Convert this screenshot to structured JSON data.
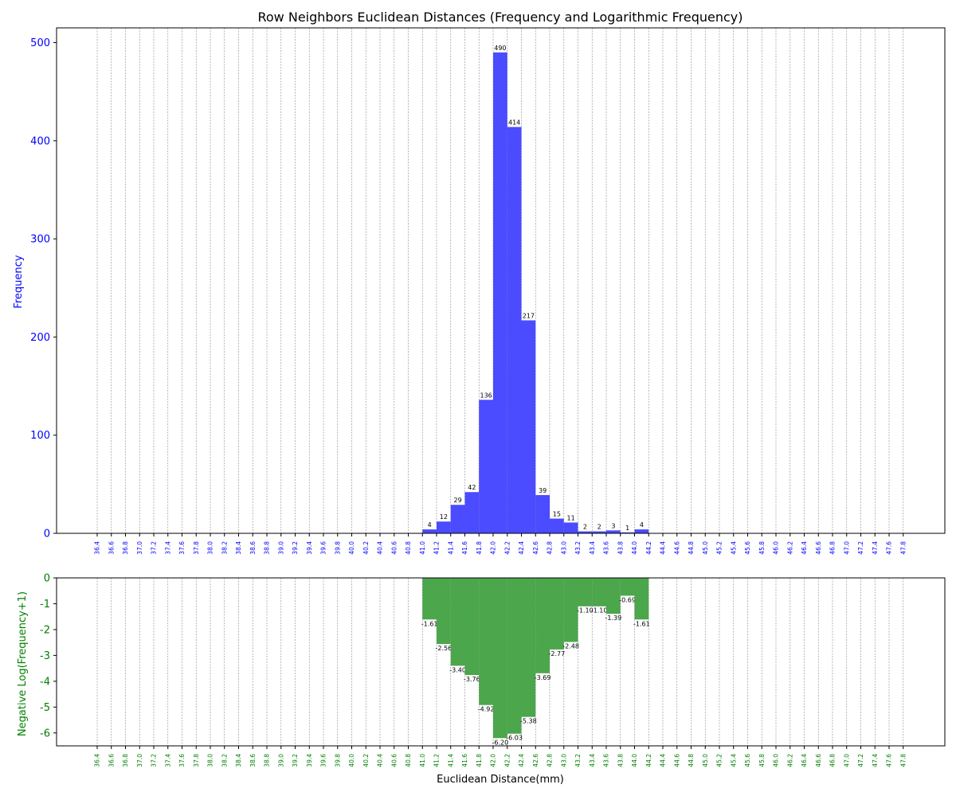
{
  "chart_data": [
    {
      "type": "bar",
      "title": "Row Neighbors Euclidean Distances (Frequency and Logarithmic Frequency)",
      "ylabel": "Frequency",
      "xlabel": "",
      "ylim": [
        0,
        515
      ],
      "yticks": [
        0,
        100,
        200,
        300,
        400,
        500
      ],
      "color": "#4b4bff",
      "axis_color": "#0000ff",
      "grid": "vertical dashed",
      "tick_labels": [
        "36.4",
        "36.6",
        "36.8",
        "37.0",
        "37.2",
        "37.4",
        "37.6",
        "37.8",
        "38.0",
        "38.2",
        "38.4",
        "38.6",
        "38.8",
        "39.0",
        "39.2",
        "39.4",
        "39.6",
        "39.8",
        "40.0",
        "40.2",
        "40.4",
        "40.6",
        "40.8",
        "41.0",
        "41.2",
        "41.4",
        "41.6",
        "41.8",
        "42.0",
        "42.2",
        "42.4",
        "42.6",
        "42.8",
        "43.0",
        "43.2",
        "43.4",
        "43.6",
        "43.8",
        "44.0",
        "44.2",
        "44.4",
        "44.6",
        "44.8",
        "45.0",
        "45.2",
        "45.4",
        "45.6",
        "45.8",
        "46.0",
        "46.2",
        "46.4",
        "46.6",
        "46.8",
        "47.0",
        "47.2",
        "47.4",
        "47.6",
        "47.8"
      ],
      "bar_starts": [
        41.0,
        41.2,
        41.4,
        41.6,
        41.8,
        42.0,
        42.2,
        42.4,
        42.6,
        42.8,
        43.0,
        43.2,
        43.4,
        43.6,
        43.8,
        44.0
      ],
      "values": [
        4,
        12,
        29,
        42,
        136,
        490,
        414,
        217,
        39,
        15,
        11,
        2,
        2,
        3,
        1,
        4
      ],
      "labels": [
        "4",
        "12",
        "29",
        "42",
        "136",
        "490",
        "414",
        "217",
        "39",
        "15",
        "11",
        "2",
        "2",
        "3",
        "1",
        "4"
      ]
    },
    {
      "type": "bar",
      "title": "",
      "ylabel": "Negative Log(Frequency+1)",
      "xlabel": "Euclidean Distance(mm)",
      "ylim": [
        -6.5,
        0
      ],
      "yticks": [
        0,
        -1,
        -2,
        -3,
        -4,
        -5,
        -6
      ],
      "color": "#4ca64c",
      "axis_color": "#008000",
      "grid": "vertical dashed",
      "tick_labels": [
        "36.4",
        "36.6",
        "36.8",
        "37.0",
        "37.2",
        "37.4",
        "37.6",
        "37.8",
        "38.0",
        "38.2",
        "38.4",
        "38.6",
        "38.8",
        "39.0",
        "39.2",
        "39.4",
        "39.6",
        "39.8",
        "40.0",
        "40.2",
        "40.4",
        "40.6",
        "40.8",
        "41.0",
        "41.2",
        "41.4",
        "41.6",
        "41.8",
        "42.0",
        "42.2",
        "42.4",
        "42.6",
        "42.8",
        "43.0",
        "43.2",
        "43.4",
        "43.6",
        "43.8",
        "44.0",
        "44.2",
        "44.4",
        "44.6",
        "44.8",
        "45.0",
        "45.2",
        "45.4",
        "45.6",
        "45.8",
        "46.0",
        "46.2",
        "46.4",
        "46.6",
        "46.8",
        "47.0",
        "47.2",
        "47.4",
        "47.6",
        "47.8"
      ],
      "bar_starts": [
        41.0,
        41.2,
        41.4,
        41.6,
        41.8,
        42.0,
        42.2,
        42.4,
        42.6,
        42.8,
        43.0,
        43.2,
        43.4,
        43.6,
        43.8,
        44.0
      ],
      "values": [
        -1.61,
        -2.56,
        -3.4,
        -3.76,
        -4.92,
        -6.2,
        -6.03,
        -5.38,
        -3.69,
        -2.77,
        -2.48,
        -1.1,
        -1.1,
        -1.39,
        -0.69,
        -1.61
      ],
      "labels": [
        "-1.61",
        "-2.56",
        "-3.40",
        "-3.76",
        "-4.92",
        "-6.20",
        "-6.03",
        "-5.38",
        "-3.69",
        "-2.77",
        "-2.48",
        "-1.10",
        "-1.10",
        "-1.39",
        "-0.69",
        "-1.61"
      ]
    }
  ]
}
